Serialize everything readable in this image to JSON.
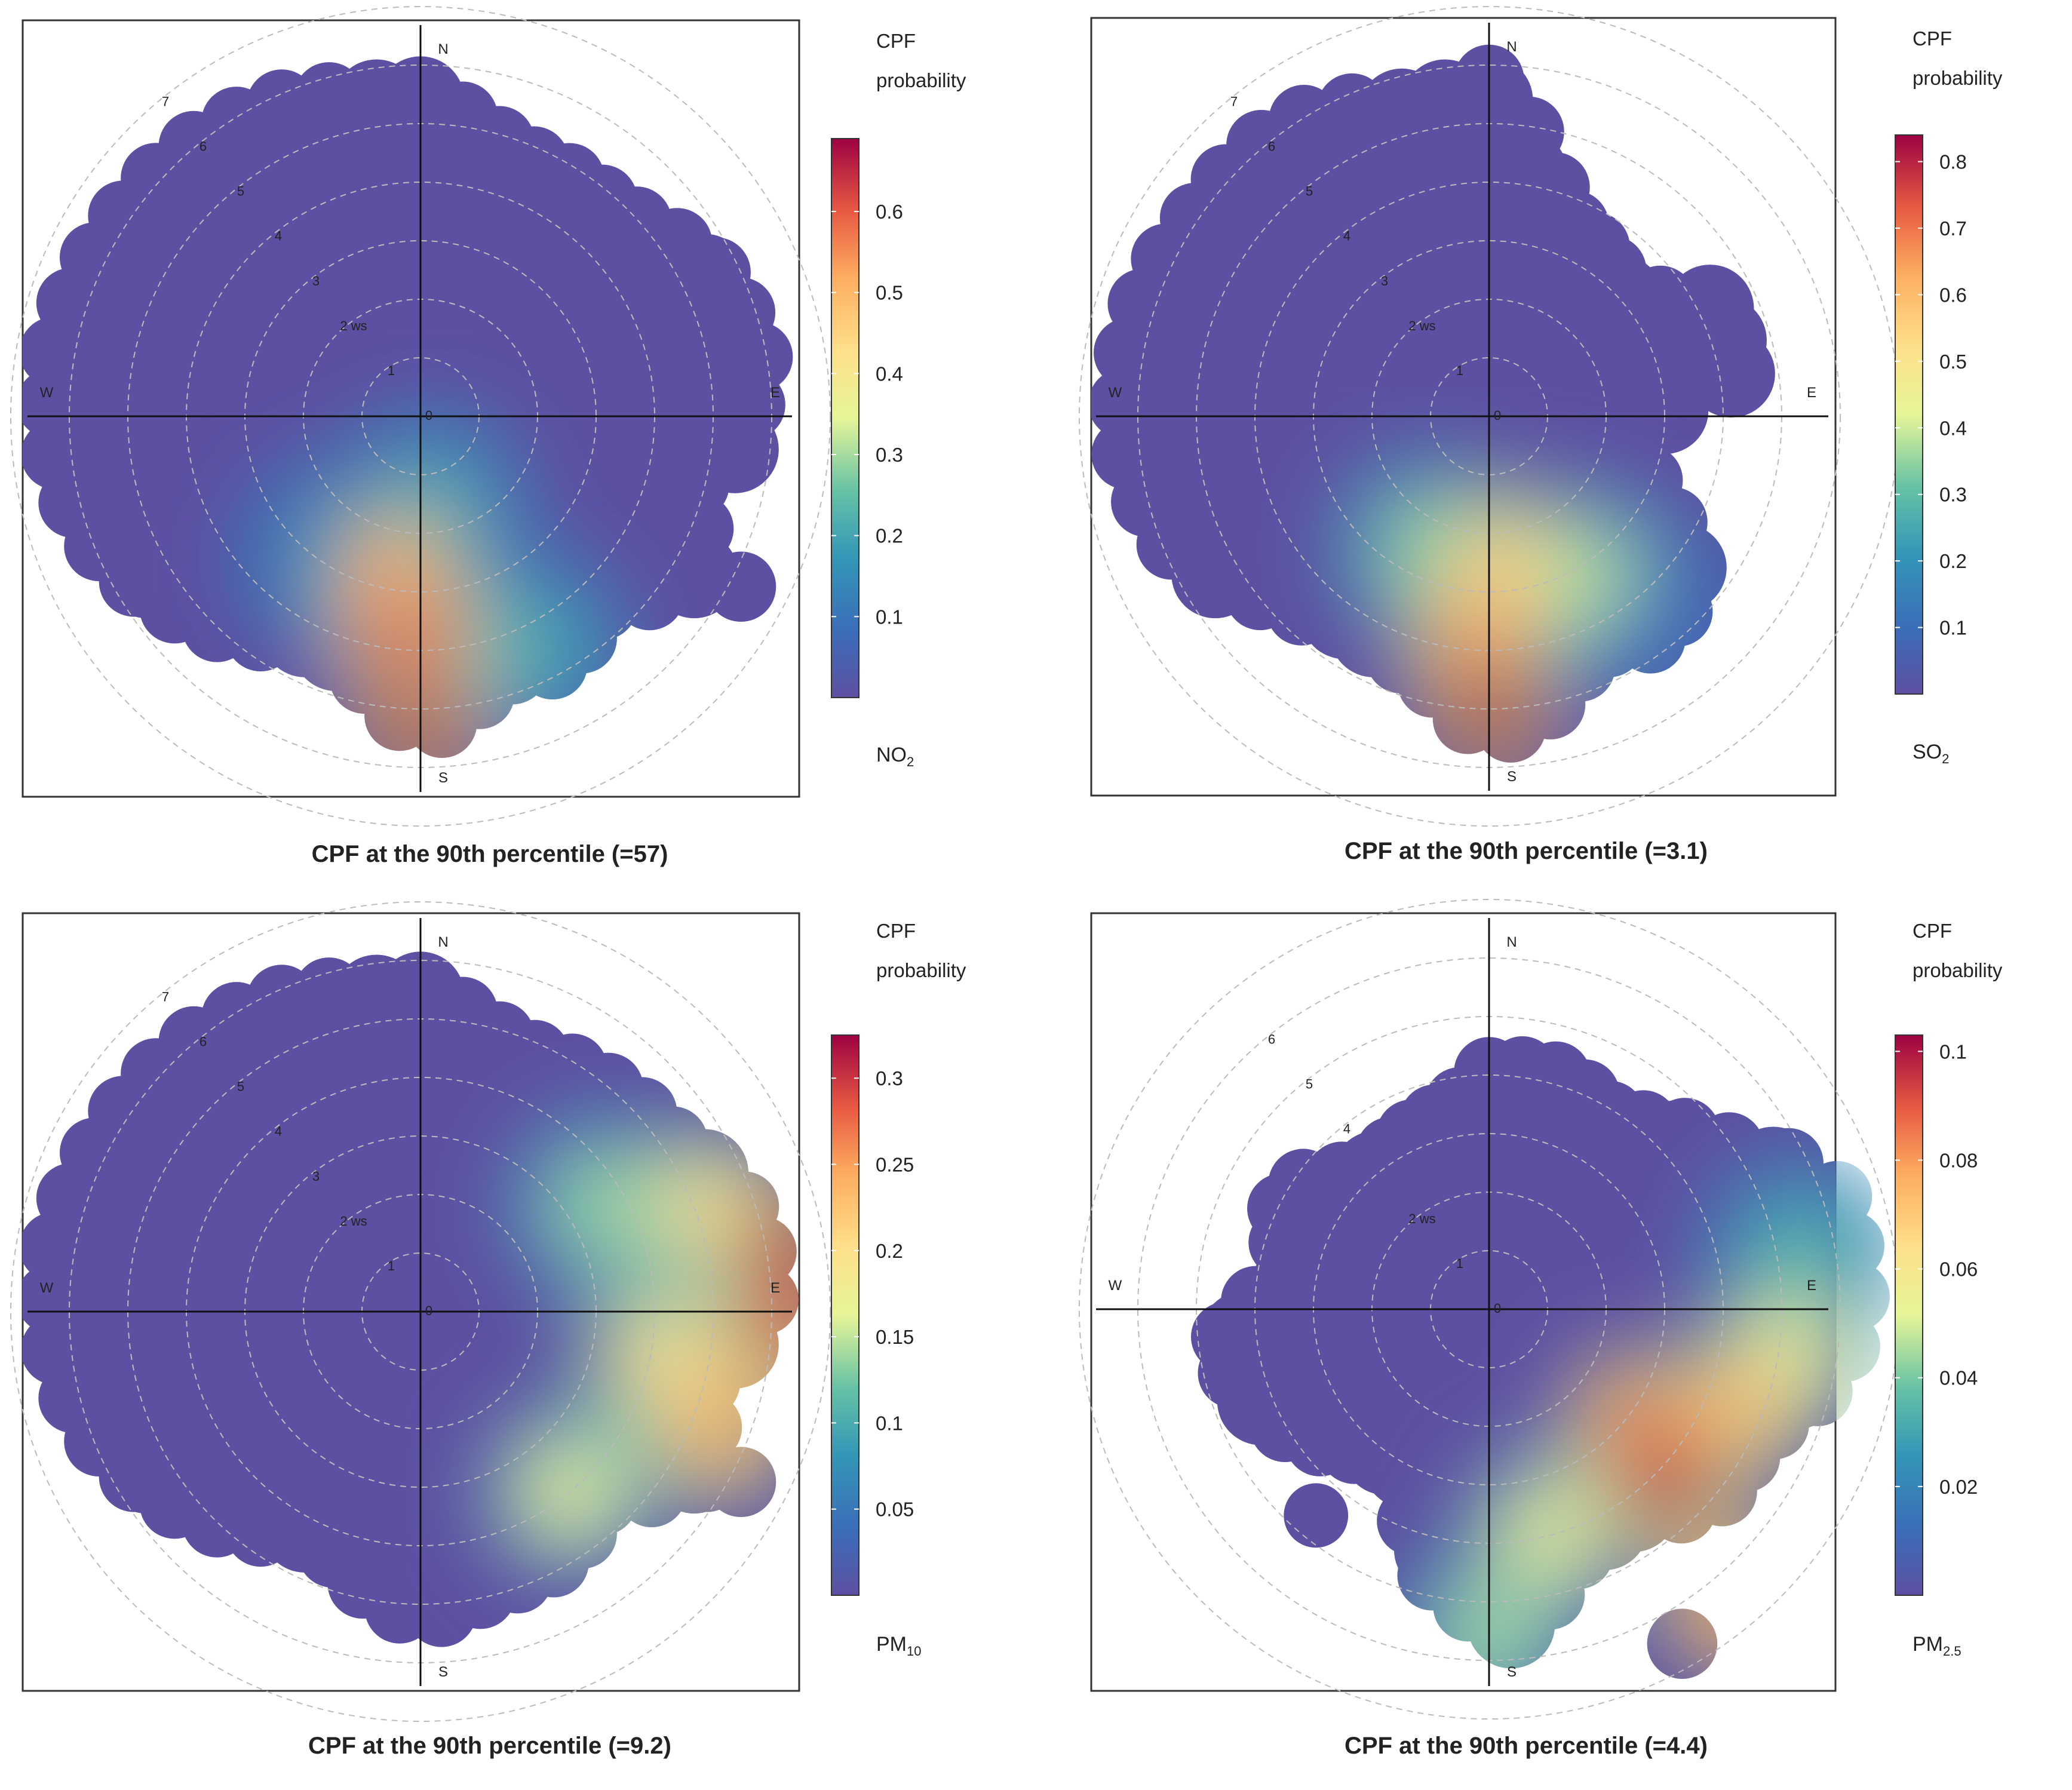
{
  "figure": {
    "panels": [
      {
        "pollutant": "NO",
        "sub": "2",
        "caption": "CPF at the 90th percentile (=57)"
      },
      {
        "pollutant": "SO",
        "sub": "2",
        "caption": "CPF at the 90th percentile (=3.1)"
      },
      {
        "pollutant": "PM",
        "sub": "10",
        "caption": "CPF at the 90th percentile (=9.2)"
      },
      {
        "pollutant": "PM",
        "sub": "2.5",
        "caption": "CPF at the 90th percentile (=4.4)"
      }
    ]
  },
  "chart_data": [
    {
      "type": "heatmap",
      "subtype": "polar",
      "title": "CPF at the 90th percentile (=57)",
      "pollutant": "NO2",
      "colorbar_title": [
        "CPF",
        "probability"
      ],
      "colorbar_ticks": [
        "0.1",
        "0.2",
        "0.3",
        "0.4",
        "0.5",
        "0.6"
      ],
      "colorbar_range": [
        0.0,
        0.69
      ],
      "compass": [
        "N",
        "E",
        "S",
        "W"
      ],
      "ring_labels": [
        "0",
        "1",
        "2 ws",
        "3",
        "4",
        "5",
        "6",
        "7"
      ],
      "radial_max_ws": 7,
      "hotspots": [
        {
          "dir_deg": 180,
          "ws": 5.5,
          "cpf": 0.69
        },
        {
          "dir_deg": 183,
          "ws": 3.8,
          "cpf": 0.62
        },
        {
          "dir_deg": 190,
          "ws": 2.7,
          "cpf": 0.5
        },
        {
          "dir_deg": 155,
          "ws": 4.4,
          "cpf": 0.22
        },
        {
          "dir_deg": 210,
          "ws": 2.8,
          "cpf": 0.18
        },
        {
          "dir_deg": 175,
          "ws": 1.6,
          "cpf": 0.22
        }
      ]
    },
    {
      "type": "heatmap",
      "subtype": "polar",
      "title": "CPF at the 90th percentile (=3.1)",
      "pollutant": "SO2",
      "colorbar_title": [
        "CPF",
        "probability"
      ],
      "colorbar_ticks": [
        "0.1",
        "0.2",
        "0.3",
        "0.4",
        "0.5",
        "0.6",
        "0.7",
        "0.8"
      ],
      "colorbar_range": [
        0.0,
        0.84
      ],
      "compass": [
        "N",
        "E",
        "S",
        "W"
      ],
      "ring_labels": [
        "0",
        "1",
        "2 ws",
        "3",
        "4",
        "5",
        "6",
        "7"
      ],
      "radial_max_ws": 7,
      "hotspots": [
        {
          "dir_deg": 180,
          "ws": 5.2,
          "cpf": 0.84
        },
        {
          "dir_deg": 183,
          "ws": 3.9,
          "cpf": 0.66
        },
        {
          "dir_deg": 175,
          "ws": 2.5,
          "cpf": 0.55
        },
        {
          "dir_deg": 150,
          "ws": 3.2,
          "cpf": 0.38
        },
        {
          "dir_deg": 205,
          "ws": 2.5,
          "cpf": 0.35
        },
        {
          "dir_deg": 140,
          "ws": 4.6,
          "cpf": 0.1
        }
      ]
    },
    {
      "type": "heatmap",
      "subtype": "polar",
      "title": "CPF at the 90th percentile (=9.2)",
      "pollutant": "PM10",
      "colorbar_title": [
        "CPF",
        "probability"
      ],
      "colorbar_ticks": [
        "0.05",
        "0.1",
        "0.15",
        "0.2",
        "0.25",
        "0.3"
      ],
      "colorbar_range": [
        0.0,
        0.325
      ],
      "compass": [
        "N",
        "E",
        "S",
        "W"
      ],
      "ring_labels": [
        "0",
        "1",
        "2 ws",
        "3",
        "4",
        "5",
        "6",
        "7"
      ],
      "radial_max_ws": 7,
      "hotspots": [
        {
          "dir_deg": 80,
          "ws": 6.4,
          "cpf": 0.32
        },
        {
          "dir_deg": 93,
          "ws": 6.3,
          "cpf": 0.3
        },
        {
          "dir_deg": 112,
          "ws": 5.5,
          "cpf": 0.25
        },
        {
          "dir_deg": 70,
          "ws": 5.2,
          "cpf": 0.2
        },
        {
          "dir_deg": 100,
          "ws": 4.2,
          "cpf": 0.2
        },
        {
          "dir_deg": 140,
          "ws": 4.0,
          "cpf": 0.17
        },
        {
          "dir_deg": 60,
          "ws": 3.6,
          "cpf": 0.14
        }
      ]
    },
    {
      "type": "heatmap",
      "subtype": "polar",
      "title": "CPF at the 90th percentile (=4.4)",
      "pollutant": "PM2.5",
      "colorbar_title": [
        "CPF",
        "probability"
      ],
      "colorbar_ticks": [
        "0.02",
        "0.04",
        "0.06",
        "0.08",
        "0.1"
      ],
      "colorbar_range": [
        0.0,
        0.103
      ],
      "compass": [
        "N",
        "E",
        "S",
        "W"
      ],
      "ring_labels": [
        "0",
        "1",
        "2 ws",
        "4",
        "5",
        "6"
      ],
      "radial_max_ws": 7,
      "hotspots": [
        {
          "dir_deg": 135,
          "ws": 4.3,
          "cpf": 0.1
        },
        {
          "dir_deg": 140,
          "ws": 6.6,
          "cpf": 0.085
        },
        {
          "dir_deg": 128,
          "ws": 3.2,
          "cpf": 0.085
        },
        {
          "dir_deg": 112,
          "ws": 4.6,
          "cpf": 0.075
        },
        {
          "dir_deg": 98,
          "ws": 5.2,
          "cpf": 0.055
        },
        {
          "dir_deg": 165,
          "ws": 4.0,
          "cpf": 0.055
        },
        {
          "dir_deg": 80,
          "ws": 5.4,
          "cpf": 0.035
        },
        {
          "dir_deg": 180,
          "ws": 5.6,
          "cpf": 0.045
        }
      ]
    }
  ]
}
